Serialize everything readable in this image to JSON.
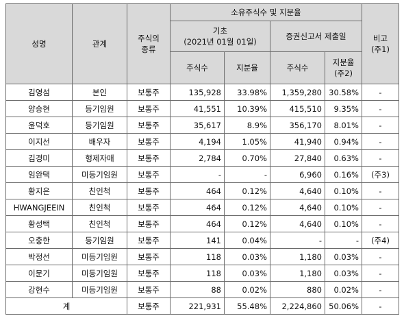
{
  "table": {
    "header": {
      "name": "성명",
      "relation": "관계",
      "stock_type": "주식의\n종류",
      "ownership": "소유주식수 및 지분율",
      "base": "기초\n(2021년 01월 01일)",
      "filing": "증권신고서 제출일",
      "shares_base": "주식수",
      "ratio_base": "지분율",
      "shares_filing": "주식수",
      "ratio_filing": "지분율\n(주2)",
      "note": "비고\n(주1)"
    },
    "rows": [
      [
        "김영섬",
        "본인",
        "보통주",
        "135,928",
        "33.98%",
        "1,359,280",
        "30.58%",
        "-"
      ],
      [
        "양승현",
        "등기임원",
        "보통주",
        "41,551",
        "10.39%",
        "415,510",
        "9.35%",
        "-"
      ],
      [
        "윤덕호",
        "등기임원",
        "보통주",
        "35,617",
        "8.9%",
        "356,170",
        "8.01%",
        "-"
      ],
      [
        "이지선",
        "배우자",
        "보통주",
        "4,194",
        "1.05%",
        "41,940",
        "0.94%",
        "-"
      ],
      [
        "김경미",
        "형제자매",
        "보통주",
        "2,784",
        "0.70%",
        "27,840",
        "0.63%",
        "-"
      ],
      [
        "임완택",
        "미등기임원",
        "보통주",
        "-",
        "-",
        "6,960",
        "0.16%",
        "(주3)"
      ],
      [
        "황지은",
        "친인척",
        "보통주",
        "464",
        "0.12%",
        "4,640",
        "0.10%",
        "-"
      ],
      [
        "HWANGJEEIN",
        "친인척",
        "보통주",
        "464",
        "0.12%",
        "4,640",
        "0.10%",
        "-"
      ],
      [
        "황성택",
        "친인척",
        "보통주",
        "464",
        "0.12%",
        "4,640",
        "0.10%",
        "-"
      ],
      [
        "오충한",
        "등기임원",
        "보통주",
        "141",
        "0.04%",
        "-",
        "-",
        "(주4)"
      ],
      [
        "박정선",
        "미등기임원",
        "보통주",
        "118",
        "0.03%",
        "1,180",
        "0.03%",
        "-"
      ],
      [
        "이문기",
        "미등기임원",
        "보통주",
        "118",
        "0.03%",
        "1,180",
        "0.03%",
        "-"
      ],
      [
        "강현수",
        "미등기임원",
        "보통주",
        "88",
        "0.02%",
        "880",
        "0.02%",
        "-"
      ]
    ],
    "total": [
      "계",
      "보통주",
      "221,931",
      "55.48%",
      "2,224,860",
      "50.06%",
      "-"
    ]
  }
}
